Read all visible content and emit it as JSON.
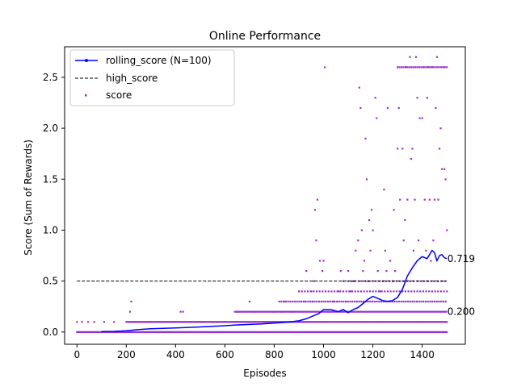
{
  "chart_data": {
    "type": "scatter",
    "title": "Online Performance",
    "xlabel": "Episodes",
    "ylabel": "Score (Sum of Rewards)",
    "xlim": [
      -50,
      1575
    ],
    "ylim": [
      -0.12,
      2.8
    ],
    "xticks": [
      0,
      200,
      400,
      600,
      800,
      1000,
      1200,
      1400
    ],
    "yticks": [
      0.0,
      0.5,
      1.0,
      1.5,
      2.0,
      2.5
    ],
    "ytick_labels": [
      "0.0",
      "0.5",
      "1.0",
      "1.5",
      "2.0",
      "2.5"
    ],
    "grid": false,
    "legend_position": "top-left",
    "colors": {
      "rolling": "#0000ff",
      "high": "#000000",
      "score": "#9932cc"
    },
    "series": [
      {
        "name": "rolling_score (N=100)",
        "kind": "line",
        "x": [
          99,
          150,
          200,
          250,
          300,
          350,
          400,
          450,
          500,
          550,
          600,
          650,
          700,
          750,
          800,
          850,
          900,
          930,
          960,
          980,
          1000,
          1030,
          1060,
          1080,
          1100,
          1120,
          1140,
          1160,
          1180,
          1200,
          1220,
          1240,
          1260,
          1280,
          1300,
          1320,
          1340,
          1360,
          1380,
          1400,
          1420,
          1440,
          1450,
          1460,
          1470,
          1480,
          1490,
          1500
        ],
        "y": [
          0.005,
          0.007,
          0.012,
          0.025,
          0.032,
          0.036,
          0.04,
          0.045,
          0.05,
          0.056,
          0.062,
          0.07,
          0.075,
          0.08,
          0.088,
          0.095,
          0.11,
          0.13,
          0.16,
          0.18,
          0.22,
          0.22,
          0.2,
          0.22,
          0.19,
          0.22,
          0.24,
          0.28,
          0.32,
          0.35,
          0.33,
          0.31,
          0.3,
          0.31,
          0.34,
          0.42,
          0.55,
          0.63,
          0.7,
          0.74,
          0.72,
          0.8,
          0.78,
          0.7,
          0.75,
          0.76,
          0.73,
          0.72
        ]
      },
      {
        "name": "high_score",
        "kind": "dashed-line",
        "x": [
          0,
          1500
        ],
        "y": [
          0.5,
          0.5
        ]
      },
      {
        "name": "score",
        "kind": "scatter",
        "points": [
          [
            0,
            0.1
          ],
          [
            20,
            0.1
          ],
          [
            45,
            0.1
          ],
          [
            70,
            0.1
          ],
          [
            110,
            0.1
          ],
          [
            130,
            0.0
          ],
          [
            150,
            0.1
          ],
          [
            215,
            0.2
          ],
          [
            220,
            0.3
          ],
          [
            230,
            0.1
          ],
          [
            260,
            0.1
          ],
          [
            300,
            0.1
          ],
          [
            350,
            0.1
          ],
          [
            390,
            0.1
          ],
          [
            420,
            0.2
          ],
          [
            430,
            0.2
          ],
          [
            460,
            0.1
          ],
          [
            500,
            0.1
          ],
          [
            550,
            0.1
          ],
          [
            600,
            0.1
          ],
          [
            650,
            0.2
          ],
          [
            700,
            0.3
          ],
          [
            720,
            0.2
          ],
          [
            760,
            0.1
          ],
          [
            800,
            0.2
          ],
          [
            830,
            0.2
          ],
          [
            840,
            0.3
          ],
          [
            870,
            0.2
          ],
          [
            900,
            0.4
          ],
          [
            920,
            0.3
          ],
          [
            930,
            0.6
          ],
          [
            950,
            0.4
          ],
          [
            955,
            0.3
          ],
          [
            960,
            0.5
          ],
          [
            965,
            1.2
          ],
          [
            970,
            0.9
          ],
          [
            975,
            1.3
          ],
          [
            985,
            0.7
          ],
          [
            995,
            0.6
          ],
          [
            1000,
            0.7
          ],
          [
            1005,
            2.6
          ],
          [
            1020,
            0.2
          ],
          [
            1040,
            0.3
          ],
          [
            1060,
            0.4
          ],
          [
            1070,
            0.6
          ],
          [
            1080,
            0.5
          ],
          [
            1090,
            0.3
          ],
          [
            1100,
            0.6
          ],
          [
            1110,
            0.4
          ],
          [
            1120,
            0.5
          ],
          [
            1130,
            0.8
          ],
          [
            1140,
            0.9
          ],
          [
            1145,
            2.4
          ],
          [
            1150,
            2.2
          ],
          [
            1155,
            1.0
          ],
          [
            1160,
            0.6
          ],
          [
            1165,
            0.7
          ],
          [
            1170,
            1.9
          ],
          [
            1175,
            1.5
          ],
          [
            1180,
            0.5
          ],
          [
            1185,
            1.1
          ],
          [
            1190,
            0.8
          ],
          [
            1195,
            1.2
          ],
          [
            1200,
            1.0
          ],
          [
            1210,
            2.3
          ],
          [
            1215,
            2.1
          ],
          [
            1220,
            0.6
          ],
          [
            1230,
            0.4
          ],
          [
            1240,
            0.5
          ],
          [
            1245,
            1.4
          ],
          [
            1250,
            0.8
          ],
          [
            1255,
            0.6
          ],
          [
            1260,
            2.2
          ],
          [
            1270,
            0.7
          ],
          [
            1280,
            0.5
          ],
          [
            1285,
            1.2
          ],
          [
            1290,
            0.6
          ],
          [
            1300,
            1.8
          ],
          [
            1305,
            2.2
          ],
          [
            1310,
            1.3
          ],
          [
            1320,
            1.8
          ],
          [
            1325,
            0.9
          ],
          [
            1330,
            1.1
          ],
          [
            1335,
            2.6
          ],
          [
            1340,
            1.3
          ],
          [
            1350,
            2.7
          ],
          [
            1355,
            1.7
          ],
          [
            1360,
            1.8
          ],
          [
            1365,
            0.8
          ],
          [
            1370,
            1.3
          ],
          [
            1375,
            2.7
          ],
          [
            1380,
            2.3
          ],
          [
            1385,
            0.9
          ],
          [
            1390,
            2.1
          ],
          [
            1400,
            2.1
          ],
          [
            1405,
            2.6
          ],
          [
            1410,
            1.3
          ],
          [
            1415,
            0.8
          ],
          [
            1420,
            2.3
          ],
          [
            1425,
            2.6
          ],
          [
            1430,
            1.3
          ],
          [
            1435,
            0.7
          ],
          [
            1440,
            2.6
          ],
          [
            1445,
            0.9
          ],
          [
            1450,
            1.3
          ],
          [
            1455,
            2.2
          ],
          [
            1460,
            2.7
          ],
          [
            1465,
            1.3
          ],
          [
            1470,
            1.8
          ],
          [
            1475,
            2.0
          ],
          [
            1480,
            1.6
          ],
          [
            1485,
            2.6
          ],
          [
            1490,
            1.6
          ],
          [
            1495,
            1.5
          ],
          [
            1500,
            1.0
          ]
        ],
        "bands": [
          {
            "x0": 0,
            "x1": 1500,
            "y": 0.0,
            "step": 3
          },
          {
            "x0": 200,
            "x1": 1500,
            "y": 0.1,
            "step": 4
          },
          {
            "x0": 640,
            "x1": 1500,
            "y": 0.2,
            "step": 6
          },
          {
            "x0": 820,
            "x1": 1500,
            "y": 0.3,
            "step": 9
          },
          {
            "x0": 900,
            "x1": 1500,
            "y": 0.4,
            "step": 12
          },
          {
            "x0": 1100,
            "x1": 1500,
            "y": 0.5,
            "step": 14
          },
          {
            "x0": 1300,
            "x1": 1500,
            "y": 2.6,
            "step": 8
          }
        ]
      }
    ],
    "annotations": [
      {
        "text": "0.719",
        "x": 1502,
        "y": 0.72
      },
      {
        "text": "0.200",
        "x": 1502,
        "y": 0.2
      }
    ]
  }
}
